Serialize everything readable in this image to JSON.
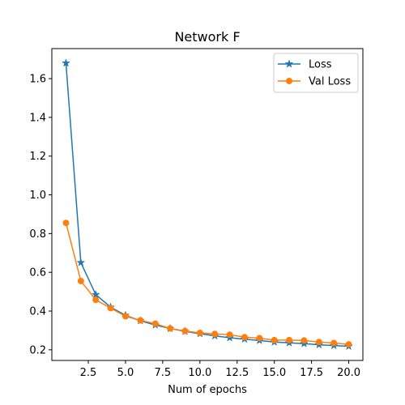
{
  "chart_data": {
    "type": "line",
    "title": "Network F",
    "xlabel": "Num of epochs",
    "ylabel": "",
    "x": [
      1,
      2,
      3,
      4,
      5,
      6,
      7,
      8,
      9,
      10,
      11,
      12,
      13,
      14,
      15,
      16,
      17,
      18,
      19,
      20
    ],
    "xlim": [
      0.05,
      20.95
    ],
    "ylim": [
      0.145,
      1.755
    ],
    "xticks": [
      2.5,
      5.0,
      7.5,
      10.0,
      12.5,
      15.0,
      17.5,
      20.0
    ],
    "xtick_labels": [
      "2.5",
      "5.0",
      "7.5",
      "10.0",
      "12.5",
      "15.0",
      "17.5",
      "20.0"
    ],
    "yticks": [
      0.2,
      0.4,
      0.6,
      0.8,
      1.0,
      1.2,
      1.4,
      1.6
    ],
    "ytick_labels": [
      "0.2",
      "0.4",
      "0.6",
      "0.8",
      "1.0",
      "1.2",
      "1.4",
      "1.6"
    ],
    "grid": false,
    "legend": "top-right",
    "series": [
      {
        "name": "Loss",
        "color": "#1f77b4",
        "marker": "star",
        "values": [
          1.68,
          0.65,
          0.485,
          0.42,
          0.378,
          0.35,
          0.328,
          0.31,
          0.295,
          0.283,
          0.272,
          0.262,
          0.255,
          0.248,
          0.24,
          0.236,
          0.232,
          0.226,
          0.222,
          0.218
        ]
      },
      {
        "name": "Val Loss",
        "color": "#ff7f0e",
        "marker": "circle",
        "values": [
          0.855,
          0.555,
          0.458,
          0.415,
          0.373,
          0.352,
          0.335,
          0.31,
          0.297,
          0.287,
          0.282,
          0.278,
          0.265,
          0.26,
          0.25,
          0.25,
          0.248,
          0.24,
          0.235,
          0.228
        ]
      }
    ]
  }
}
